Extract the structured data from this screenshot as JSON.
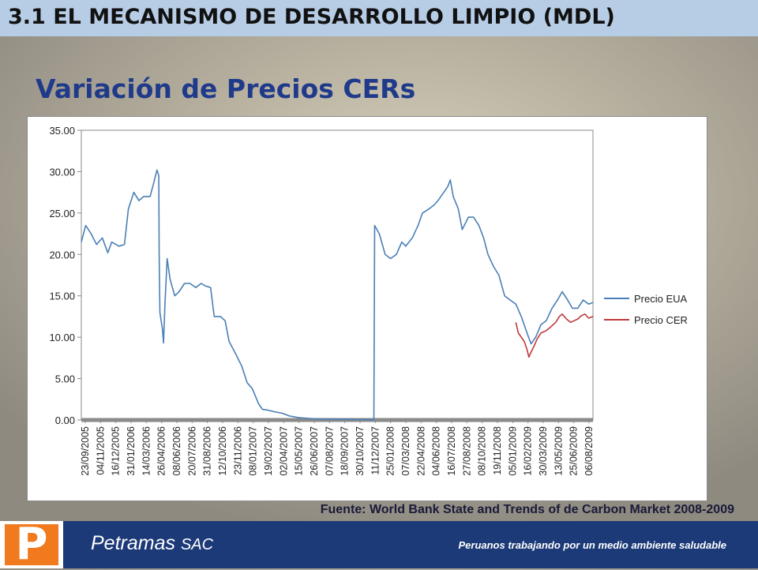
{
  "header": {
    "section_title": "3.1 EL MECANISMO DE DESARROLLO LIMPIO (MDL)"
  },
  "slide": {
    "title": "Variación de Precios CERs"
  },
  "source_note": "Fuente: World Bank State and Trends of de Carbon Market 2008-2009",
  "footer": {
    "logo_letter": "P",
    "company_name": "Petramas",
    "company_suffix": "SAC",
    "tagline": "Peruanos trabajando por un medio ambiente saludable"
  },
  "colors": {
    "eua": "#4a7fb5",
    "cer": "#c0393b",
    "header_band": "#b7cde6",
    "footer_band": "#1c3a78",
    "logo": "#f07a1d"
  },
  "chart_data": {
    "type": "line",
    "ylim": [
      0,
      35
    ],
    "yticks": [
      "0.00",
      "5.00",
      "10.00",
      "15.00",
      "20.00",
      "25.00",
      "30.00",
      "35.00"
    ],
    "xlim": [
      "2005-09-23",
      "2009-08-06"
    ],
    "xtick_labels": [
      "23/09/2005",
      "04/11/2005",
      "16/12/2005",
      "31/01/2006",
      "14/03/2006",
      "26/04/2006",
      "08/06/2006",
      "20/07/2006",
      "31/08/2006",
      "12/10/2006",
      "23/11/2006",
      "08/01/2007",
      "19/02/2007",
      "02/04/2007",
      "15/05/2007",
      "26/06/2007",
      "07/08/2007",
      "18/09/2007",
      "30/10/2007",
      "11/12/2007",
      "25/01/2008",
      "07/03/2008",
      "22/04/2008",
      "04/06/2008",
      "16/07/2008",
      "27/08/2008",
      "08/10/2008",
      "19/11/2008",
      "05/01/2009",
      "16/02/2009",
      "30/03/2009",
      "13/05/2009",
      "25/06/2009",
      "06/08/2009"
    ],
    "legend_position": "right",
    "series": [
      {
        "name": "Precio EUA",
        "color": "#4a7fb5",
        "points": [
          [
            "2005-09-23",
            21.5
          ],
          [
            "2005-10-05",
            23.5
          ],
          [
            "2005-10-20",
            22.5
          ],
          [
            "2005-11-04",
            21.2
          ],
          [
            "2005-11-20",
            22.0
          ],
          [
            "2005-12-05",
            20.2
          ],
          [
            "2005-12-16",
            21.5
          ],
          [
            "2006-01-05",
            21.0
          ],
          [
            "2006-01-20",
            21.2
          ],
          [
            "2006-01-31",
            25.5
          ],
          [
            "2006-02-15",
            27.5
          ],
          [
            "2006-03-01",
            26.5
          ],
          [
            "2006-03-14",
            27.0
          ],
          [
            "2006-04-01",
            27.0
          ],
          [
            "2006-04-10",
            28.5
          ],
          [
            "2006-04-20",
            30.2
          ],
          [
            "2006-04-25",
            29.5
          ],
          [
            "2006-04-26",
            20.0
          ],
          [
            "2006-04-28",
            13.0
          ],
          [
            "2006-05-05",
            11.0
          ],
          [
            "2006-05-08",
            9.3
          ],
          [
            "2006-05-12",
            14.0
          ],
          [
            "2006-05-18",
            19.5
          ],
          [
            "2006-05-26",
            17.0
          ],
          [
            "2006-06-08",
            15.0
          ],
          [
            "2006-06-20",
            15.5
          ],
          [
            "2006-07-05",
            16.5
          ],
          [
            "2006-07-20",
            16.5
          ],
          [
            "2006-08-05",
            16.0
          ],
          [
            "2006-08-20",
            16.5
          ],
          [
            "2006-08-31",
            16.2
          ],
          [
            "2006-09-15",
            16.0
          ],
          [
            "2006-09-25",
            12.5
          ],
          [
            "2006-10-12",
            12.5
          ],
          [
            "2006-10-25",
            12.0
          ],
          [
            "2006-11-05",
            9.5
          ],
          [
            "2006-11-23",
            8.0
          ],
          [
            "2006-12-10",
            6.5
          ],
          [
            "2006-12-25",
            4.5
          ],
          [
            "2007-01-08",
            3.8
          ],
          [
            "2007-01-25",
            2.0
          ],
          [
            "2007-02-05",
            1.3
          ],
          [
            "2007-02-19",
            1.2
          ],
          [
            "2007-03-10",
            1.0
          ],
          [
            "2007-04-02",
            0.8
          ],
          [
            "2007-04-20",
            0.5
          ],
          [
            "2007-05-15",
            0.3
          ],
          [
            "2007-06-10",
            0.2
          ],
          [
            "2007-06-26",
            0.15
          ],
          [
            "2007-08-07",
            0.1
          ],
          [
            "2007-09-18",
            0.08
          ],
          [
            "2007-10-30",
            0.06
          ],
          [
            "2007-11-25",
            0.05
          ],
          [
            "2007-12-10",
            0.03
          ],
          [
            "2007-12-12",
            23.5
          ],
          [
            "2007-12-25",
            22.5
          ],
          [
            "2008-01-10",
            20.0
          ],
          [
            "2008-01-25",
            19.5
          ],
          [
            "2008-02-10",
            20.0
          ],
          [
            "2008-02-25",
            21.5
          ],
          [
            "2008-03-07",
            21.0
          ],
          [
            "2008-03-25",
            22.0
          ],
          [
            "2008-04-10",
            23.5
          ],
          [
            "2008-04-22",
            25.0
          ],
          [
            "2008-05-10",
            25.5
          ],
          [
            "2008-05-25",
            26.0
          ],
          [
            "2008-06-04",
            26.5
          ],
          [
            "2008-06-20",
            27.5
          ],
          [
            "2008-07-01",
            28.2
          ],
          [
            "2008-07-08",
            29.0
          ],
          [
            "2008-07-16",
            27.0
          ],
          [
            "2008-07-30",
            25.5
          ],
          [
            "2008-08-10",
            23.0
          ],
          [
            "2008-08-27",
            24.5
          ],
          [
            "2008-09-10",
            24.5
          ],
          [
            "2008-09-25",
            23.5
          ],
          [
            "2008-10-08",
            22.0
          ],
          [
            "2008-10-20",
            20.0
          ],
          [
            "2008-11-05",
            18.5
          ],
          [
            "2008-11-19",
            17.5
          ],
          [
            "2008-12-05",
            15.0
          ],
          [
            "2008-12-20",
            14.5
          ],
          [
            "2009-01-05",
            14.0
          ],
          [
            "2009-01-20",
            12.5
          ],
          [
            "2009-02-05",
            10.5
          ],
          [
            "2009-02-16",
            9.2
          ],
          [
            "2009-03-01",
            10.0
          ],
          [
            "2009-03-15",
            11.5
          ],
          [
            "2009-03-30",
            12.0
          ],
          [
            "2009-04-15",
            13.5
          ],
          [
            "2009-04-30",
            14.5
          ],
          [
            "2009-05-13",
            15.5
          ],
          [
            "2009-05-28",
            14.5
          ],
          [
            "2009-06-10",
            13.5
          ],
          [
            "2009-06-25",
            13.5
          ],
          [
            "2009-07-10",
            14.5
          ],
          [
            "2009-07-25",
            14.0
          ],
          [
            "2009-08-06",
            14.2
          ]
        ]
      },
      {
        "name": "Precio CER",
        "color": "#c0393b",
        "points": [
          [
            "2009-01-05",
            11.8
          ],
          [
            "2009-01-12",
            10.5
          ],
          [
            "2009-01-20",
            10.0
          ],
          [
            "2009-01-28",
            9.5
          ],
          [
            "2009-02-05",
            8.5
          ],
          [
            "2009-02-10",
            7.6
          ],
          [
            "2009-02-16",
            8.2
          ],
          [
            "2009-02-25",
            9.0
          ],
          [
            "2009-03-05",
            9.8
          ],
          [
            "2009-03-15",
            10.5
          ],
          [
            "2009-03-30",
            10.8
          ],
          [
            "2009-04-10",
            11.2
          ],
          [
            "2009-04-25",
            11.8
          ],
          [
            "2009-05-05",
            12.5
          ],
          [
            "2009-05-13",
            12.8
          ],
          [
            "2009-05-25",
            12.2
          ],
          [
            "2009-06-05",
            11.8
          ],
          [
            "2009-06-15",
            12.0
          ],
          [
            "2009-06-25",
            12.2
          ],
          [
            "2009-07-05",
            12.6
          ],
          [
            "2009-07-15",
            12.8
          ],
          [
            "2009-07-25",
            12.3
          ],
          [
            "2009-08-06",
            12.5
          ]
        ]
      }
    ]
  }
}
